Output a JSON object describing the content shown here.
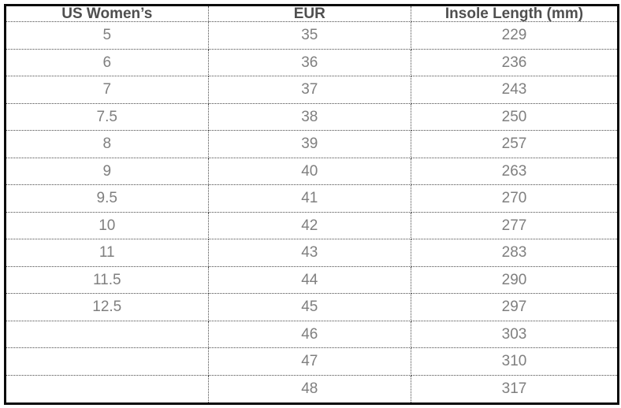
{
  "chart_data": {
    "type": "table",
    "columns": [
      "US Women’s",
      "EUR",
      "Insole Length (mm)"
    ],
    "rows": [
      [
        "5",
        "35",
        "229"
      ],
      [
        "6",
        "36",
        "236"
      ],
      [
        "7",
        "37",
        "243"
      ],
      [
        "7.5",
        "38",
        "250"
      ],
      [
        "8",
        "39",
        "257"
      ],
      [
        "9",
        "40",
        "263"
      ],
      [
        "9.5",
        "41",
        "270"
      ],
      [
        "10",
        "42",
        "277"
      ],
      [
        "11",
        "43",
        "283"
      ],
      [
        "11.5",
        "44",
        "290"
      ],
      [
        "12.5",
        "45",
        "297"
      ],
      [
        "",
        "46",
        "303"
      ],
      [
        "",
        "47",
        "310"
      ],
      [
        "",
        "48",
        "317"
      ]
    ],
    "layout": {
      "grid": "dotted-internal-lines",
      "outer_border": "solid"
    }
  },
  "colors": {
    "header_text": "#4f4f4f",
    "body_text": "#7f7f7f",
    "outer_border": "#0a0a0a",
    "grid_lines": "#4a4a4a",
    "background": "#ffffff"
  }
}
